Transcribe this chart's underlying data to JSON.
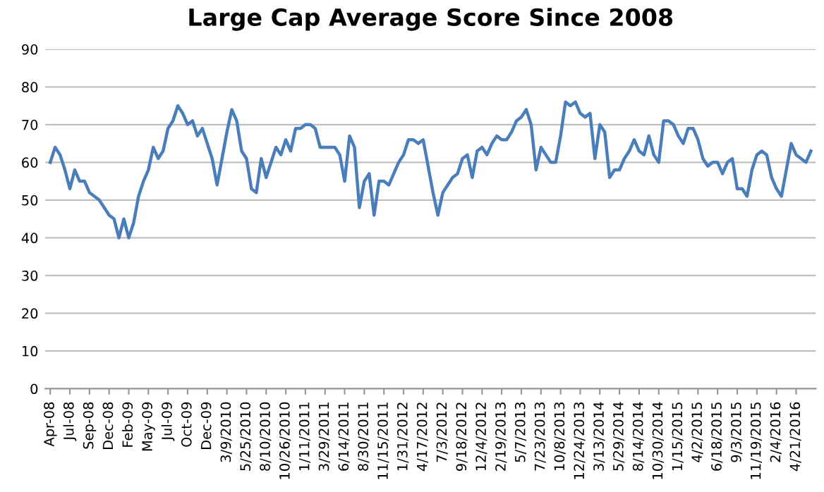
{
  "chart_data": {
    "type": "line",
    "title": "Large Cap Average Score Since 2008",
    "categories": [
      "Apr-08",
      null,
      null,
      null,
      "Jul-08",
      null,
      null,
      null,
      "Sep-08",
      null,
      null,
      null,
      "Dec-08",
      null,
      null,
      null,
      "Feb-09",
      null,
      null,
      null,
      "May-09",
      null,
      null,
      null,
      "Jul-09",
      null,
      null,
      null,
      "Oct-09",
      null,
      null,
      null,
      "Dec-09",
      null,
      null,
      null,
      "3/9/2010",
      null,
      null,
      null,
      "5/25/2010",
      null,
      null,
      null,
      "8/10/2010",
      null,
      null,
      null,
      "10/26/2010",
      null,
      null,
      null,
      "1/11/2011",
      null,
      null,
      null,
      "3/29/2011",
      null,
      null,
      null,
      "6/14/2011",
      null,
      null,
      null,
      "8/30/2011",
      null,
      null,
      null,
      "11/15/2011",
      null,
      null,
      null,
      "1/31/2012",
      null,
      null,
      null,
      "4/17/2012",
      null,
      null,
      null,
      "7/3/2012",
      null,
      null,
      null,
      "9/18/2012",
      null,
      null,
      null,
      "12/4/2012",
      null,
      null,
      null,
      "2/19/2013",
      null,
      null,
      null,
      "5/7/2013",
      null,
      null,
      null,
      "7/23/2013",
      null,
      null,
      null,
      "10/8/2013",
      null,
      null,
      null,
      "12/24/2013",
      null,
      null,
      null,
      "3/13/2014",
      null,
      null,
      null,
      "5/29/2014",
      null,
      null,
      null,
      "8/14/2014",
      null,
      null,
      null,
      "10/30/2014",
      null,
      null,
      null,
      "1/15/2015",
      null,
      null,
      null,
      "4/2/2015",
      null,
      null,
      null,
      "6/18/2015",
      null,
      null,
      null,
      "9/3/2015",
      null,
      null,
      null,
      "11/19/2015",
      null,
      null,
      null,
      "2/4/2016",
      null,
      null,
      null,
      "4/21/2016",
      null,
      null,
      null
    ],
    "series": [
      {
        "color": "#4a7ebb",
        "values": [
          60,
          64,
          62,
          58,
          53,
          58,
          55,
          55,
          52,
          51,
          50,
          48,
          46,
          45,
          40,
          45,
          40,
          44,
          51,
          55,
          58,
          64,
          61,
          63,
          69,
          71,
          75,
          73,
          70,
          71,
          67,
          69,
          65,
          61,
          54,
          61,
          68,
          74,
          71,
          63,
          61,
          53,
          52,
          61,
          56,
          60,
          64,
          62,
          66,
          63,
          69,
          69,
          70,
          70,
          69,
          64,
          64,
          64,
          64,
          62,
          55,
          67,
          64,
          48,
          55,
          57,
          46,
          55,
          55,
          54,
          57,
          60,
          62,
          66,
          66,
          65,
          66,
          59,
          52,
          46,
          52,
          54,
          56,
          57,
          61,
          62,
          56,
          63,
          64,
          62,
          65,
          67,
          66,
          66,
          68,
          71,
          72,
          74,
          70,
          58,
          64,
          62,
          60,
          60,
          67,
          76,
          75,
          76,
          73,
          72,
          73,
          61,
          70,
          68,
          56,
          58,
          58,
          61,
          63,
          66,
          63,
          62,
          67,
          62,
          60,
          71,
          71,
          70,
          67,
          65,
          69,
          69,
          66,
          61,
          59,
          60,
          60,
          57,
          60,
          61,
          53,
          53,
          51,
          58,
          62,
          63,
          62,
          56,
          53,
          51,
          58,
          65,
          62,
          61,
          60,
          63
        ]
      }
    ],
    "ylim": [
      0,
      90
    ],
    "yticks": [
      0,
      10,
      20,
      30,
      40,
      50,
      60,
      70,
      80,
      90
    ],
    "grid": "y",
    "legend": false
  }
}
